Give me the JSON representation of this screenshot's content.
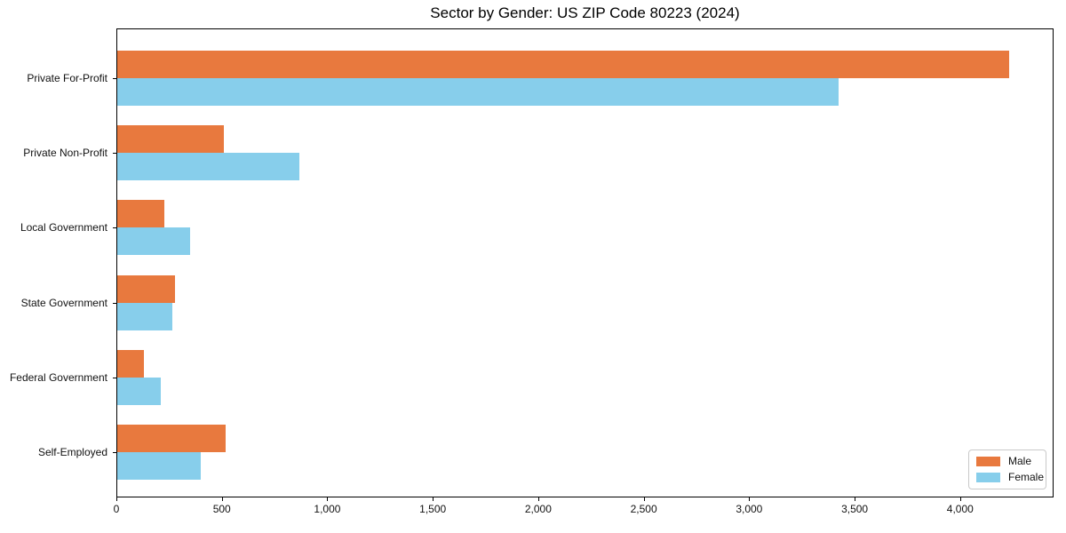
{
  "chart_data": {
    "type": "bar",
    "orientation": "horizontal",
    "title": "Sector by Gender: US ZIP Code 80223 (2024)",
    "categories": [
      "Private For-Profit",
      "Private Non-Profit",
      "Local Government",
      "State Government",
      "Federal Government",
      "Self-Employed"
    ],
    "series": [
      {
        "name": "Male",
        "color": "#e8793e",
        "values": [
          4230,
          505,
          225,
          275,
          125,
          515
        ]
      },
      {
        "name": "Female",
        "color": "#87ceeb",
        "values": [
          3420,
          865,
          345,
          260,
          205,
          395
        ]
      }
    ],
    "xlabel": "",
    "ylabel": "",
    "xlim": [
      0,
      4443
    ],
    "x_ticks": [
      0,
      500,
      1000,
      1500,
      2000,
      2500,
      3000,
      3500,
      4000
    ],
    "x_tick_labels": [
      "0",
      "500",
      "1,000",
      "1,500",
      "2,000",
      "2,500",
      "3,000",
      "3,500",
      "4,000"
    ],
    "grid": false,
    "legend": {
      "location": "lower right"
    }
  }
}
